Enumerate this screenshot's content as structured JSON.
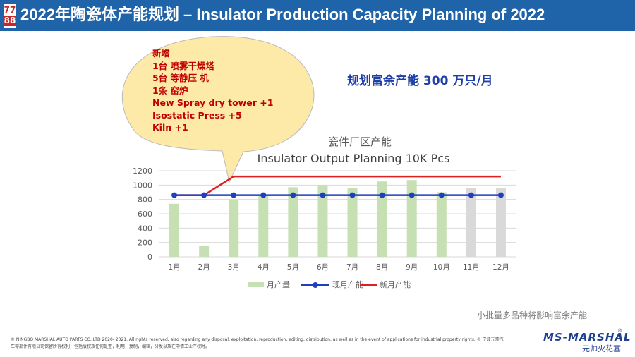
{
  "header": {
    "logo_top": "77",
    "logo_bottom": "88",
    "title": "2022年陶瓷体产能规划 – Insulator Production Capacity Planning of 2022"
  },
  "callout": {
    "lines": [
      "新增",
      "1台 喷雾干燥塔",
      "5台 等静压 机",
      "1条 窑炉",
      "New Spray dry tower +1",
      "Isostatic Press  +5",
      "Kiln +1"
    ]
  },
  "surplus": "规划富余产能 300 万只/月",
  "note": "小批量多品种将影响富余产能",
  "footer": {
    "copyright_en": "© NINGBO MARSHAL AUTO PARTS CO.,LTD  2020- 2021. All rights reserved, also regarding any disposal, exploitation, reproduction, editing, distribution, as well as in the event of applications for industrial property rights.",
    "copyright_cn": "© 宁波元帅汽车零部件有限公司保留所有权利，包括版权及任何处置，利用，复制，编辑，分发以及在申请工业产权时。",
    "brand_name": "MS-MARSHAL",
    "brand_sub": "元帅火花塞",
    "reg": "®"
  },
  "colors": {
    "header_bg": "#1f63a8",
    "bar": "#c6e0b4",
    "bar_grey": "#d9d9d9",
    "current_line": "#1f3fbf",
    "new_line": "#e02020",
    "callout_fill": "#fde9a8"
  },
  "chart_data": {
    "type": "bar",
    "title": "瓷件厂区产能",
    "subtitle": "Insulator Output Planning 10K Pcs",
    "categories": [
      "1月",
      "2月",
      "3月",
      "4月",
      "5月",
      "6月",
      "7月",
      "8月",
      "9月",
      "10月",
      "11月",
      "12月"
    ],
    "ylim": [
      0,
      1200
    ],
    "yticks": [
      0,
      200,
      400,
      600,
      800,
      1000,
      1200
    ],
    "grid": true,
    "legend_position": "bottom",
    "series": [
      {
        "name": "月产量",
        "kind": "bar",
        "values": [
          740,
          150,
          800,
          850,
          970,
          1000,
          960,
          1050,
          1070,
          900,
          960,
          960
        ],
        "grey_from_index": 10
      },
      {
        "name": "现月产能",
        "kind": "line",
        "values": [
          860,
          860,
          860,
          860,
          860,
          860,
          860,
          860,
          860,
          860,
          860,
          860
        ]
      },
      {
        "name": "新月产能",
        "kind": "line",
        "values": [
          860,
          860,
          1120,
          1120,
          1120,
          1120,
          1120,
          1120,
          1120,
          1120,
          1120,
          1120
        ]
      }
    ]
  }
}
